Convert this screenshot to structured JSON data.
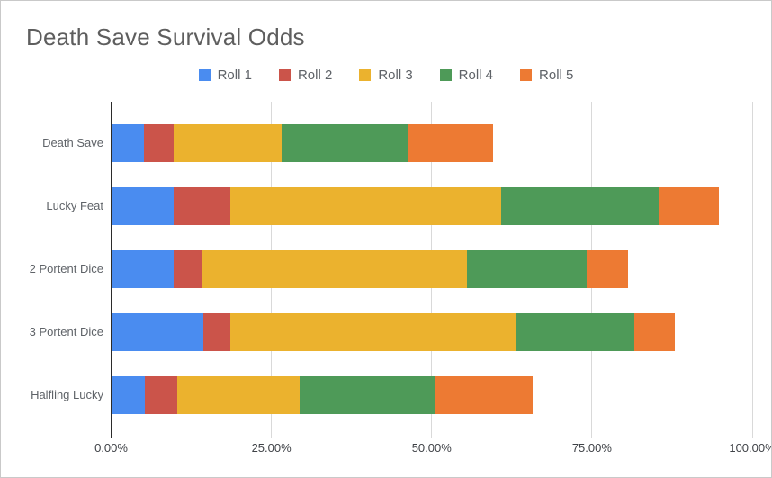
{
  "chart": {
    "title": "Death Save Survival Odds"
  },
  "chart_data": {
    "type": "bar",
    "orientation": "horizontal",
    "stacked": true,
    "title": "Death Save Survival Odds",
    "xlabel": "",
    "ylabel": "",
    "xlim": [
      0,
      100
    ],
    "x_tick_values": [
      0,
      25,
      50,
      75,
      100
    ],
    "x_ticks": [
      "0.00%",
      "25.00%",
      "50.00%",
      "75.00%",
      "100.00%"
    ],
    "grid": true,
    "legend_position": "top",
    "categories": [
      "Death Save",
      "Lucky Feat",
      "2 Portent Dice",
      "3 Portent Dice",
      "Halfling Lucky"
    ],
    "series": [
      {
        "name": "Roll 1",
        "color": "#4A8CF0",
        "values": [
          5.0,
          9.75,
          9.75,
          14.26,
          5.25
        ]
      },
      {
        "name": "Roll 2",
        "color": "#CB544A",
        "values": [
          4.75,
          8.8,
          4.45,
          4.24,
          4.97
        ]
      },
      {
        "name": "Roll 3",
        "color": "#EBB22E",
        "values": [
          16.8,
          42.23,
          41.3,
          44.6,
          19.18
        ]
      },
      {
        "name": "Roll 4",
        "color": "#4E9A58",
        "values": [
          19.76,
          24.56,
          18.6,
          18.4,
          21.1
        ]
      },
      {
        "name": "Roll 5",
        "color": "#ED7A33",
        "values": [
          13.2,
          9.38,
          6.45,
          6.4,
          15.2
        ]
      }
    ],
    "cumulative_totals": [
      59.51,
      94.72,
      80.55,
      87.9,
      65.7
    ]
  }
}
